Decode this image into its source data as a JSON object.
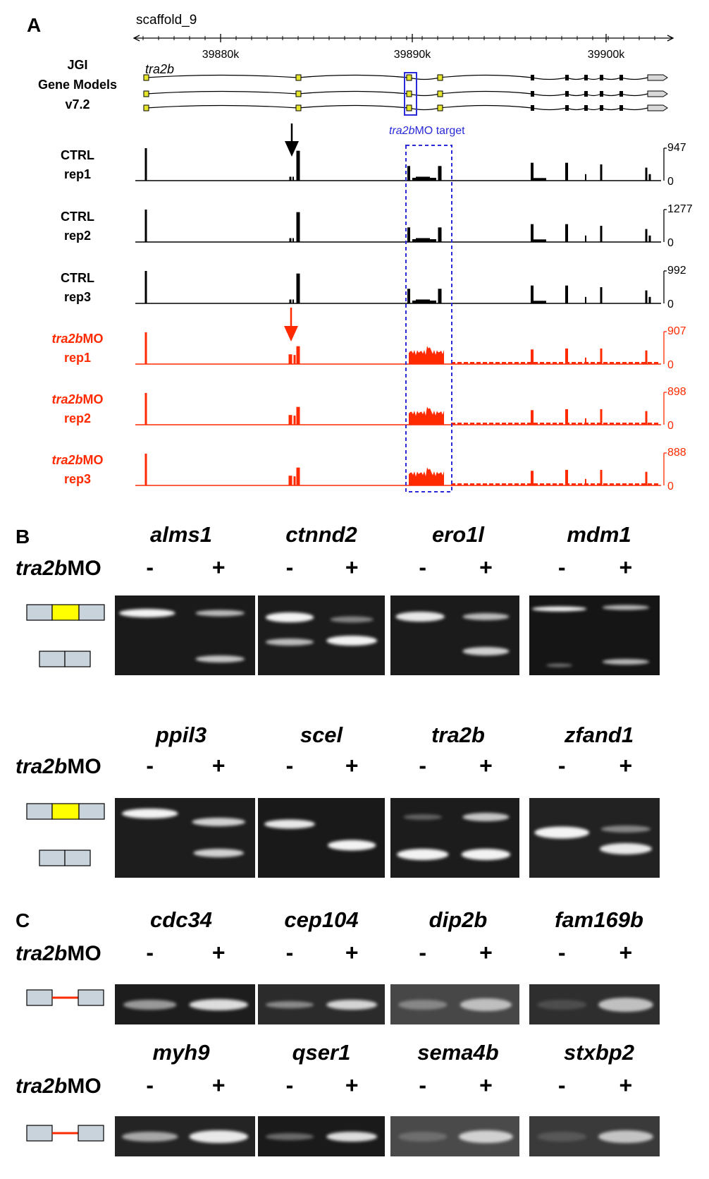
{
  "colors": {
    "ctrl": "#000000",
    "mo": "#ff2a00",
    "target_box": "#2a2ad8",
    "exon_fill": "#e6e62a",
    "included_exon": "#ffff00",
    "exon_box": "#c8d3db",
    "retained_intron": "#ff2a00"
  },
  "panel_a": {
    "letter": "A",
    "scaffold": "scaffold_9",
    "axis_ticks": [
      "39880k",
      "39890k",
      "39900k"
    ],
    "gene_models_title": [
      "JGI",
      "Gene Models",
      "v7.2"
    ],
    "gene_name": "tra2b",
    "target_label_italic": "tra2b",
    "target_label_rest": "MO target",
    "tracks": [
      {
        "line1_italic": "",
        "line1": "CTRL",
        "line2": "rep1",
        "max": "947",
        "min": "0",
        "group": "ctrl"
      },
      {
        "line1_italic": "",
        "line1": "CTRL",
        "line2": "rep2",
        "max": "1277",
        "min": "0",
        "group": "ctrl"
      },
      {
        "line1_italic": "",
        "line1": "CTRL",
        "line2": "rep3",
        "max": "992",
        "min": "0",
        "group": "ctrl"
      },
      {
        "line1_italic": "tra2b",
        "line1": "MO",
        "line2": "rep1",
        "max": "907",
        "min": "0",
        "group": "mo"
      },
      {
        "line1_italic": "tra2b",
        "line1": "MO",
        "line2": "rep2",
        "max": "898",
        "min": "0",
        "group": "mo"
      },
      {
        "line1_italic": "tra2b",
        "line1": "MO",
        "line2": "rep3",
        "max": "888",
        "min": "0",
        "group": "mo"
      }
    ]
  },
  "treatment_label": {
    "italic": "tra2b",
    "rest": "MO"
  },
  "minus": "-",
  "plus": "+",
  "panel_b": {
    "letter": "B",
    "row1_genes": [
      "alms1",
      "ctnnd2",
      "ero1l",
      "mdm1"
    ],
    "row2_genes": [
      "ppil3",
      "scel",
      "tra2b",
      "zfand1"
    ]
  },
  "panel_c": {
    "letter": "C",
    "row1_genes": [
      "cdc34",
      "cep104",
      "dip2b",
      "fam169b"
    ],
    "row2_genes": [
      "myh9",
      "qser1",
      "sema4b",
      "stxbp2"
    ]
  }
}
